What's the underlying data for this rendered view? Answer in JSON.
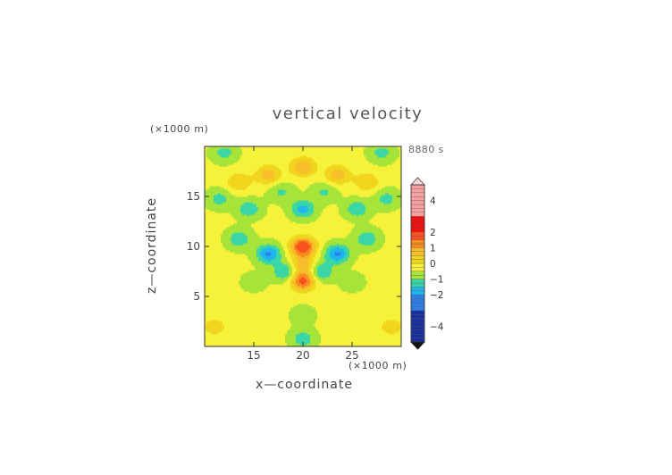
{
  "chart_data": {
    "type": "heatmap",
    "title": "vertical velocity",
    "xlabel": "x—coordinate",
    "ylabel": "z—coordinate",
    "x_unit": "(×1000 m)",
    "z_unit": "(×1000 m)",
    "time_label": "8880 s",
    "xlim": [
      10,
      30
    ],
    "ylim": [
      0,
      20
    ],
    "x_ticks": [
      15,
      20,
      25
    ],
    "y_ticks": [
      5,
      10,
      15
    ],
    "colorbar_tick_labels": [
      "4",
      "2",
      "1",
      "0",
      "−1",
      "−2",
      "−4"
    ],
    "colorbar_tick_values": [
      4,
      2,
      1,
      0,
      -1,
      -2,
      -4
    ],
    "colorbar_range": [
      -5,
      5
    ],
    "field_features": [
      {
        "x": 20,
        "z": 10,
        "value": 2.5
      },
      {
        "x": 20,
        "z": 6.6,
        "value": 2.2
      },
      {
        "x": 20,
        "z": 8.2,
        "value": 1.2
      },
      {
        "x": 20,
        "z": 18,
        "value": 1.4
      },
      {
        "x": 16.5,
        "z": 17.2,
        "value": 1.2
      },
      {
        "x": 23.5,
        "z": 17.2,
        "value": 1.2
      },
      {
        "x": 13.5,
        "z": 16.5,
        "value": 0.9
      },
      {
        "x": 26.5,
        "z": 16.5,
        "value": 0.9
      },
      {
        "x": 16.5,
        "z": 9.3,
        "value": -1.7
      },
      {
        "x": 23.5,
        "z": 9.3,
        "value": -1.7
      },
      {
        "x": 18.2,
        "z": 7.5,
        "value": -1.2
      },
      {
        "x": 21.8,
        "z": 7.5,
        "value": -1.2
      },
      {
        "x": 13.5,
        "z": 10.8,
        "value": -1.0
      },
      {
        "x": 26.5,
        "z": 10.8,
        "value": -1.0
      },
      {
        "x": 20,
        "z": 13.8,
        "value": -1.3
      },
      {
        "x": 14.5,
        "z": 13.8,
        "value": -1.0
      },
      {
        "x": 25.5,
        "z": 13.8,
        "value": -1.0
      },
      {
        "x": 11.5,
        "z": 14.8,
        "value": -0.8
      },
      {
        "x": 28.5,
        "z": 14.8,
        "value": -0.8
      },
      {
        "x": 17.8,
        "z": 15.5,
        "value": -0.7
      },
      {
        "x": 22.2,
        "z": 15.5,
        "value": -0.7
      },
      {
        "x": 12,
        "z": 19.4,
        "value": -0.8
      },
      {
        "x": 28,
        "z": 19.4,
        "value": -0.8
      },
      {
        "x": 20,
        "z": 0.8,
        "value": -0.9
      },
      {
        "x": 11,
        "z": 2,
        "value": 0.7
      },
      {
        "x": 29,
        "z": 2,
        "value": 0.7
      },
      {
        "x": 20,
        "z": 3.2,
        "value": -0.4
      },
      {
        "x": 15,
        "z": 6.5,
        "value": -0.4
      },
      {
        "x": 25,
        "z": 6.5,
        "value": -0.4
      }
    ],
    "grid": false
  }
}
